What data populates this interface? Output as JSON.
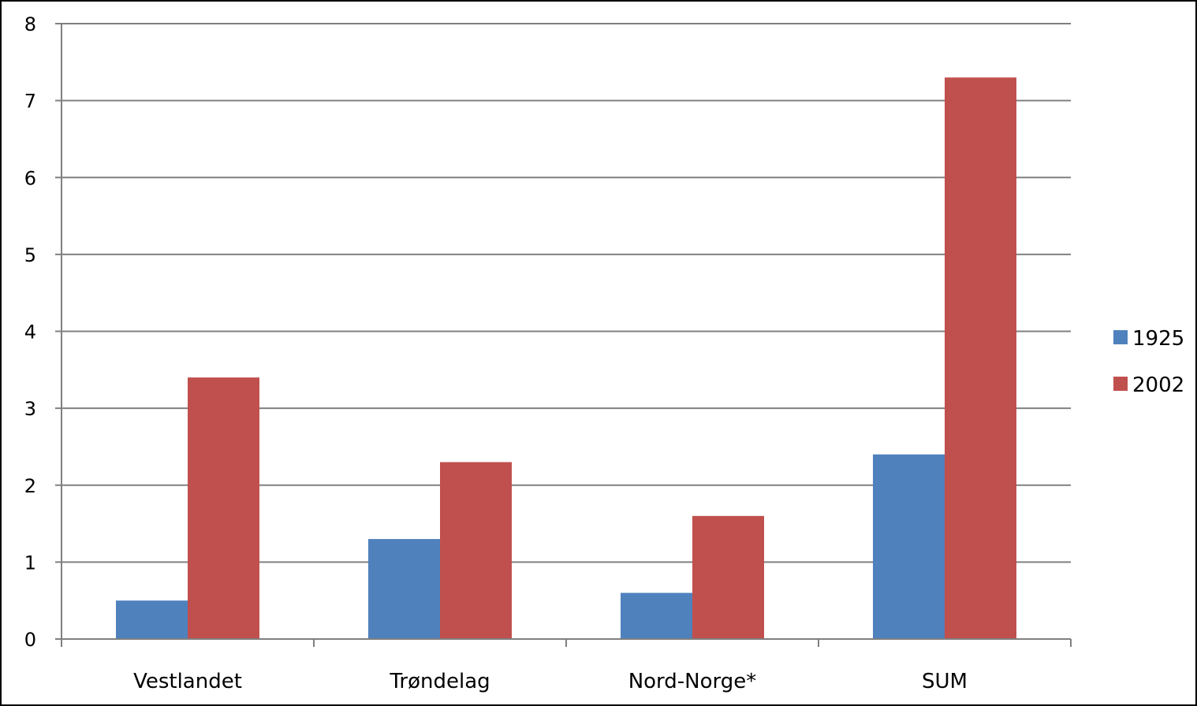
{
  "chart_data": {
    "type": "bar",
    "title": "",
    "xlabel": "",
    "ylabel": "",
    "categories": [
      "Vestlandet",
      "Trøndelag",
      "Nord-Norge*",
      "SUM"
    ],
    "series": [
      {
        "name": "1925",
        "values": [
          0.5,
          1.3,
          0.6,
          2.4
        ],
        "color": "#4F81BD"
      },
      {
        "name": "2002",
        "values": [
          3.4,
          2.3,
          1.6,
          7.3
        ],
        "color": "#C0504D"
      }
    ],
    "ylim": [
      0,
      8
    ],
    "yticks": [
      "0",
      "1",
      "2",
      "3",
      "4",
      "5",
      "6",
      "7",
      "8"
    ],
    "grid": true,
    "legend_position": "right",
    "colors": {
      "gridline": "#808080",
      "axis": "#808080",
      "background": "#ffffff",
      "frame": "#000000"
    }
  }
}
